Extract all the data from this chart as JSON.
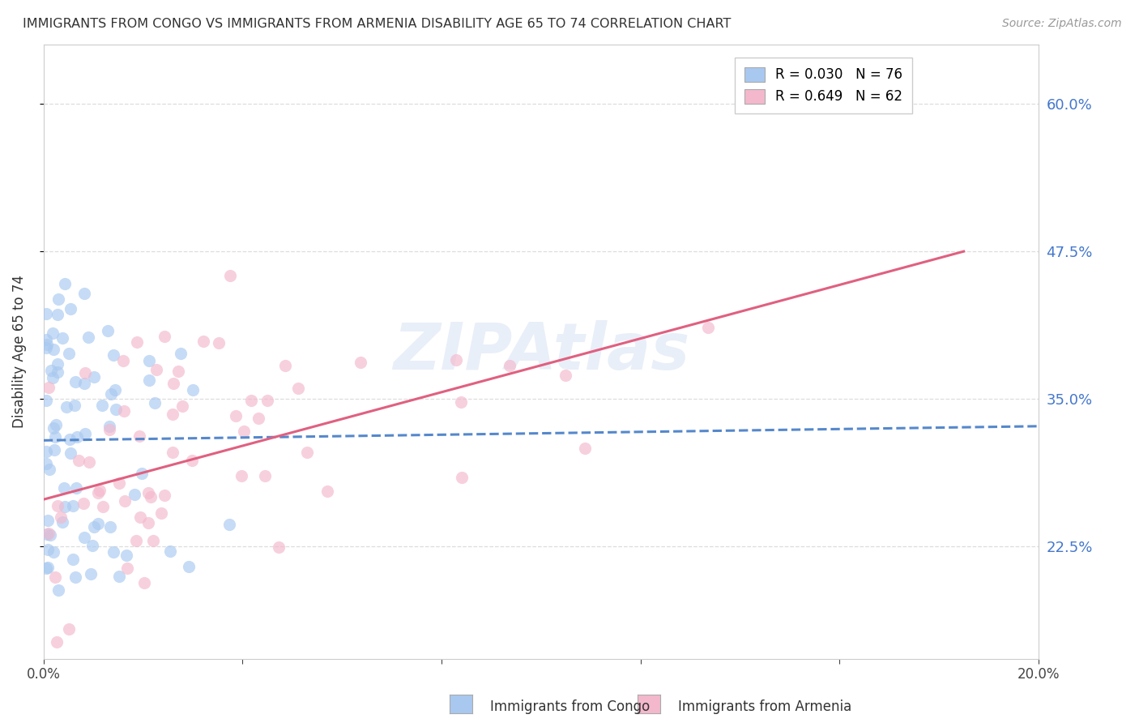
{
  "title": "IMMIGRANTS FROM CONGO VS IMMIGRANTS FROM ARMENIA DISABILITY AGE 65 TO 74 CORRELATION CHART",
  "source": "Source: ZipAtlas.com",
  "ylabel": "Disability Age 65 to 74",
  "xlim": [
    0.0,
    0.2
  ],
  "ylim": [
    0.13,
    0.65
  ],
  "xticks": [
    0.0,
    0.04,
    0.08,
    0.12,
    0.16,
    0.2
  ],
  "xtick_labels": [
    "0.0%",
    "",
    "",
    "",
    "",
    "20.0%"
  ],
  "ytick_labels_right": [
    "22.5%",
    "35.0%",
    "47.5%",
    "60.0%"
  ],
  "ytick_vals_right": [
    0.225,
    0.35,
    0.475,
    0.6
  ],
  "legend_entries": [
    {
      "label": "R = 0.030   N = 76",
      "color": "#a8c8f0"
    },
    {
      "label": "R = 0.649   N = 62",
      "color": "#f4b8cc"
    }
  ],
  "congo_color": "#a8c8f0",
  "armenia_color": "#f4b8cc",
  "congo_trend_color": "#5588cc",
  "armenia_trend_color": "#e06080",
  "watermark": "ZIPAtlas",
  "background_color": "#ffffff",
  "grid_color": "#dddddd",
  "congo_trend_x0": 0.0,
  "congo_trend_y0": 0.315,
  "congo_trend_x1": 0.2,
  "congo_trend_y1": 0.327,
  "armenia_trend_x0": 0.0,
  "armenia_trend_y0": 0.265,
  "armenia_trend_x1": 0.185,
  "armenia_trend_y1": 0.475
}
